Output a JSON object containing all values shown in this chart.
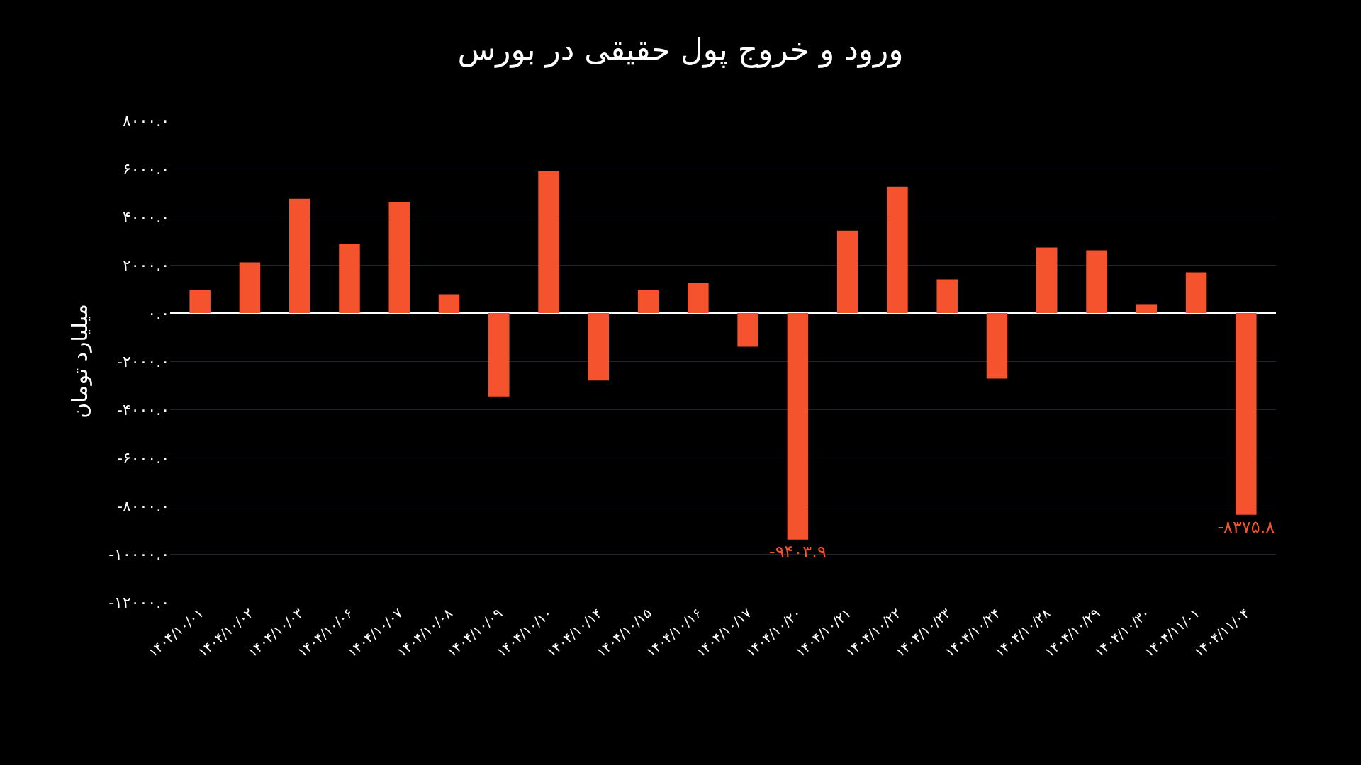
{
  "chart_data": {
    "type": "bar",
    "title": "ورود و خروج پول حقیقی در بورس",
    "ylabel": "میلیارد تومان",
    "categories": [
      "۱۴۰۴/۱۰/۰۱",
      "۱۴۰۴/۱۰/۰۲",
      "۱۴۰۴/۱۰/۰۳",
      "۱۴۰۴/۱۰/۰۶",
      "۱۴۰۴/۱۰/۰۷",
      "۱۴۰۴/۱۰/۰۸",
      "۱۴۰۴/۱۰/۰۹",
      "۱۴۰۴/۱۰/۱۰",
      "۱۴۰۴/۱۰/۱۴",
      "۱۴۰۴/۱۰/۱۵",
      "۱۴۰۴/۱۰/۱۶",
      "۱۴۰۴/۱۰/۱۷",
      "۱۴۰۴/۱۰/۲۰",
      "۱۴۰۴/۱۰/۲۱",
      "۱۴۰۴/۱۰/۲۲",
      "۱۴۰۴/۱۰/۲۳",
      "۱۴۰۴/۱۰/۲۴",
      "۱۴۰۴/۱۰/۲۸",
      "۱۴۰۴/۱۰/۲۹",
      "۱۴۰۴/۱۰/۳۰",
      "۱۴۰۴/۱۱/۰۱",
      "۱۴۰۴/۱۱/۰۴"
    ],
    "values": [
      950,
      2100,
      4740,
      2850,
      4620,
      780,
      -3460,
      5900,
      -2800,
      950,
      1240,
      -1400,
      -9403.9,
      3420,
      5240,
      1400,
      -2720,
      2720,
      2600,
      370,
      1690,
      -8375.8
    ],
    "value_labels": [
      null,
      null,
      null,
      null,
      null,
      null,
      null,
      null,
      null,
      null,
      null,
      null,
      "-۹۴۰۳.۹",
      null,
      null,
      null,
      null,
      null,
      null,
      null,
      null,
      "-۸۳۷۵.۸"
    ],
    "color": "#f4532d",
    "ylim": [
      -12000,
      8000
    ],
    "yticks": [
      {
        "value": 8000,
        "label": "۸۰۰۰.۰"
      },
      {
        "value": 6000,
        "label": "۶۰۰۰.۰"
      },
      {
        "value": 4000,
        "label": "۴۰۰۰.۰"
      },
      {
        "value": 2000,
        "label": "۲۰۰۰.۰"
      },
      {
        "value": 0,
        "label": "۰.۰"
      },
      {
        "value": -2000,
        "label": "-۲۰۰۰.۰"
      },
      {
        "value": -4000,
        "label": "-۴۰۰۰.۰"
      },
      {
        "value": -6000,
        "label": "-۶۰۰۰.۰"
      },
      {
        "value": -8000,
        "label": "-۸۰۰۰.۰"
      },
      {
        "value": -10000,
        "label": "-۱۰۰۰۰.۰"
      },
      {
        "value": -12000,
        "label": "-۱۲۰۰۰.۰"
      }
    ],
    "grid": "y"
  }
}
